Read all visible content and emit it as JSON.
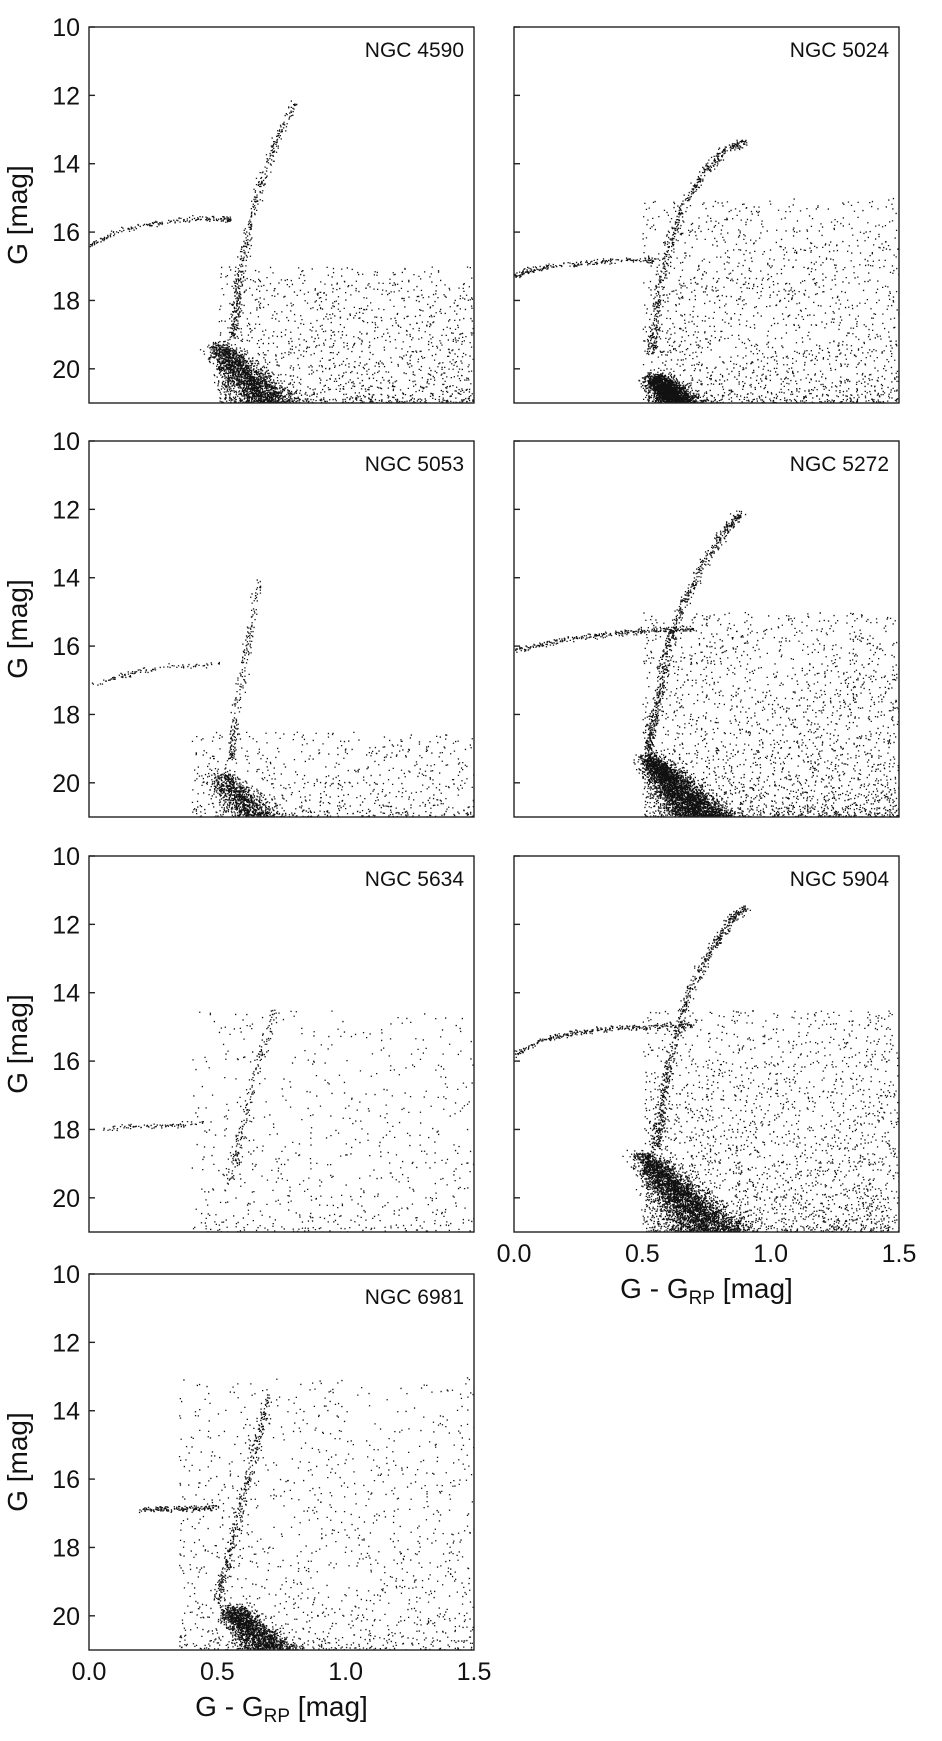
{
  "figure": {
    "y_axis_label": "G [mag]",
    "x_axis_label_prefix": "G - G",
    "x_axis_label_subscript": "RP",
    "x_axis_label_suffix": " [mag]"
  },
  "chart_data": [
    {
      "type": "scatter",
      "title": "NGC 4590",
      "xlabel": "",
      "ylabel": "G [mag]",
      "xlim": [
        0.0,
        1.5
      ],
      "ylim": [
        21,
        10
      ],
      "y_inverted": true,
      "x_ticks": [],
      "y_ticks": [
        "10",
        "12",
        "14",
        "16",
        "18",
        "20"
      ],
      "grid": false,
      "density": 1.0,
      "features": [
        {
          "kind": "horizontal_branch",
          "x": [
            0.0,
            0.1,
            0.2,
            0.3,
            0.4,
            0.5,
            0.55
          ],
          "y": [
            16.4,
            16.0,
            15.8,
            15.7,
            15.6,
            15.6,
            15.6
          ]
        },
        {
          "kind": "red_giant_branch",
          "x": [
            0.56,
            0.58,
            0.62,
            0.66,
            0.72,
            0.8
          ],
          "y": [
            19.0,
            17.5,
            16.0,
            14.8,
            13.5,
            12.2
          ]
        },
        {
          "kind": "main_sequence_turnoff",
          "x": 0.5,
          "y": 19.6
        },
        {
          "kind": "field_stars",
          "x_range": [
            0.5,
            1.5
          ],
          "y_range": [
            17.0,
            21.0
          ]
        }
      ]
    },
    {
      "type": "scatter",
      "title": "NGC 5024",
      "xlabel": "",
      "ylabel": "",
      "xlim": [
        0.0,
        1.5
      ],
      "ylim": [
        21,
        10
      ],
      "y_inverted": true,
      "x_ticks": [],
      "y_ticks": [],
      "grid": false,
      "density": 1.2,
      "features": [
        {
          "kind": "horizontal_branch",
          "x": [
            0.0,
            0.05,
            0.15,
            0.25,
            0.35,
            0.45,
            0.55
          ],
          "y": [
            17.3,
            17.1,
            17.0,
            16.9,
            16.85,
            16.8,
            16.8
          ]
        },
        {
          "kind": "red_giant_branch",
          "x": [
            0.53,
            0.56,
            0.6,
            0.66,
            0.74,
            0.82,
            0.9
          ],
          "y": [
            19.5,
            18.0,
            16.5,
            15.2,
            14.2,
            13.6,
            13.3
          ]
        },
        {
          "kind": "main_sequence_turnoff",
          "x": 0.55,
          "y": 20.5
        },
        {
          "kind": "field_stars",
          "x_range": [
            0.5,
            1.5
          ],
          "y_range": [
            15.0,
            21.0
          ]
        }
      ]
    },
    {
      "type": "scatter",
      "title": "NGC 5053",
      "xlabel": "",
      "ylabel": "G [mag]",
      "xlim": [
        0.0,
        1.5
      ],
      "ylim": [
        21,
        10
      ],
      "y_inverted": true,
      "x_ticks": [],
      "y_ticks": [
        "10",
        "12",
        "14",
        "16",
        "18",
        "20"
      ],
      "grid": false,
      "density": 0.5,
      "features": [
        {
          "kind": "horizontal_branch",
          "x": [
            0.0,
            0.1,
            0.2,
            0.3,
            0.4,
            0.5
          ],
          "y": [
            17.2,
            16.9,
            16.7,
            16.6,
            16.55,
            16.5
          ]
        },
        {
          "kind": "red_giant_branch",
          "x": [
            0.55,
            0.57,
            0.6,
            0.63,
            0.66
          ],
          "y": [
            19.3,
            18.0,
            16.5,
            15.3,
            14.0
          ]
        },
        {
          "kind": "main_sequence_turnoff",
          "x": 0.5,
          "y": 20.0
        },
        {
          "kind": "field_stars",
          "x_range": [
            0.4,
            1.5
          ],
          "y_range": [
            18.5,
            21.0
          ]
        }
      ]
    },
    {
      "type": "scatter",
      "title": "NGC 5272",
      "xlabel": "",
      "ylabel": "",
      "xlim": [
        0.0,
        1.5
      ],
      "ylim": [
        21,
        10
      ],
      "y_inverted": true,
      "x_ticks": [],
      "y_ticks": [],
      "grid": false,
      "density": 1.6,
      "features": [
        {
          "kind": "horizontal_branch",
          "x": [
            0.0,
            0.1,
            0.2,
            0.3,
            0.4,
            0.5,
            0.6,
            0.7
          ],
          "y": [
            16.1,
            15.95,
            15.8,
            15.7,
            15.6,
            15.55,
            15.5,
            15.5
          ]
        },
        {
          "kind": "red_giant_branch",
          "x": [
            0.52,
            0.56,
            0.6,
            0.66,
            0.74,
            0.82,
            0.88
          ],
          "y": [
            19.0,
            17.5,
            16.0,
            14.7,
            13.5,
            12.6,
            12.1
          ]
        },
        {
          "kind": "main_sequence_turnoff",
          "x": 0.52,
          "y": 19.5
        },
        {
          "kind": "field_stars",
          "x_range": [
            0.5,
            1.5
          ],
          "y_range": [
            15.0,
            21.0
          ]
        }
      ]
    },
    {
      "type": "scatter",
      "title": "NGC 5634",
      "xlabel": "",
      "ylabel": "G [mag]",
      "xlim": [
        0.0,
        1.5
      ],
      "ylim": [
        21,
        10
      ],
      "y_inverted": true,
      "x_ticks": [],
      "y_ticks": [
        "10",
        "12",
        "14",
        "16",
        "18",
        "20"
      ],
      "grid": false,
      "density": 0.45,
      "features": [
        {
          "kind": "horizontal_branch",
          "x": [
            0.05,
            0.15,
            0.25,
            0.35,
            0.45
          ],
          "y": [
            18.0,
            17.9,
            17.9,
            17.85,
            17.8
          ]
        },
        {
          "kind": "red_giant_branch",
          "x": [
            0.55,
            0.6,
            0.66,
            0.72
          ],
          "y": [
            19.5,
            17.8,
            16.0,
            14.5
          ]
        },
        {
          "kind": "field_stars",
          "x_range": [
            0.4,
            1.5
          ],
          "y_range": [
            14.5,
            21.0
          ]
        }
      ]
    },
    {
      "type": "scatter",
      "title": "NGC 5904",
      "xlabel": "G - G_RP [mag]",
      "ylabel": "",
      "xlim": [
        0.0,
        1.5
      ],
      "ylim": [
        21,
        10
      ],
      "y_inverted": true,
      "x_ticks": [
        "0.0",
        "0.5",
        "1.0",
        "1.5"
      ],
      "y_ticks": [],
      "grid": false,
      "density": 1.6,
      "features": [
        {
          "kind": "horizontal_branch",
          "x": [
            0.0,
            0.1,
            0.2,
            0.3,
            0.4,
            0.5,
            0.6,
            0.7
          ],
          "y": [
            15.8,
            15.4,
            15.2,
            15.1,
            15.0,
            15.0,
            14.95,
            14.95
          ]
        },
        {
          "kind": "red_giant_branch",
          "x": [
            0.55,
            0.58,
            0.62,
            0.68,
            0.76,
            0.84,
            0.9
          ],
          "y": [
            18.5,
            17.0,
            15.5,
            14.0,
            12.8,
            11.9,
            11.5
          ]
        },
        {
          "kind": "main_sequence_turnoff",
          "x": 0.5,
          "y": 19.0
        },
        {
          "kind": "field_stars",
          "x_range": [
            0.5,
            1.5
          ],
          "y_range": [
            14.5,
            21.0
          ]
        }
      ]
    },
    {
      "type": "scatter",
      "title": "NGC 6981",
      "xlabel": "G - G_RP [mag]",
      "ylabel": "G [mag]",
      "xlim": [
        0.0,
        1.5
      ],
      "ylim": [
        21,
        10
      ],
      "y_inverted": true,
      "x_ticks": [
        "0.0",
        "0.5",
        "1.0",
        "1.5"
      ],
      "y_ticks": [
        "10",
        "12",
        "14",
        "16",
        "18",
        "20"
      ],
      "grid": false,
      "density": 0.9,
      "features": [
        {
          "kind": "horizontal_branch",
          "x": [
            0.2,
            0.3,
            0.4,
            0.5
          ],
          "y": [
            16.9,
            16.85,
            16.85,
            16.8
          ]
        },
        {
          "kind": "red_giant_branch",
          "x": [
            0.5,
            0.55,
            0.6,
            0.65,
            0.7
          ],
          "y": [
            19.5,
            18.0,
            16.5,
            15.0,
            13.5
          ]
        },
        {
          "kind": "main_sequence_turnoff",
          "x": 0.55,
          "y": 20.0
        },
        {
          "kind": "field_stars",
          "x_range": [
            0.35,
            1.5
          ],
          "y_range": [
            13.0,
            21.0
          ]
        }
      ]
    }
  ]
}
